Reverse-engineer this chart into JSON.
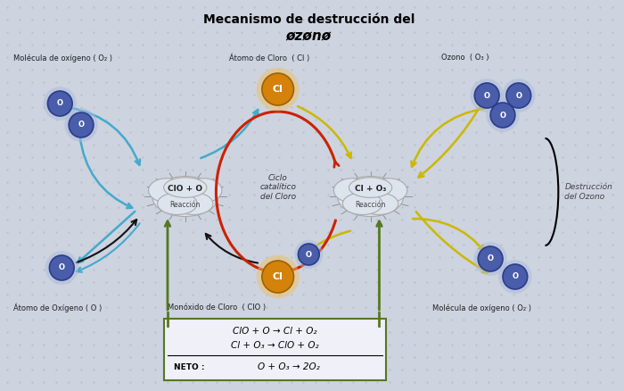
{
  "title_line1": "Mecanismo de destrucción del",
  "title_line2": "øzønø",
  "bg_color": "#cdd3df",
  "dot_color": "#b8bfcc",
  "label_O2_top_left": "Molécula de oxígeno ( O₂ )",
  "label_Cl_top": "Átomo de Cloro  ( Cl )",
  "label_O3_top_right": "Ozono  ( O₃ )",
  "label_O_bottom_left": "Átomo de Oxígeno ( O )",
  "label_ClO_bottom": "Monóxido de Cloro  ( ClO )",
  "label_O2_bottom_right": "Molécula de oxígeno ( O₂ )",
  "label_ciclo": "Ciclo\ncatalítico\ndel Cloro",
  "label_destruccion": "Destrucción\ndel Ozono",
  "eq1": "ClO + O → Cl + O₂",
  "eq2": "Cl + O₃ → ClO + O₂",
  "eq_net": "O + O₃ → 2O₂",
  "eq_net_label": "NETO :",
  "cloud_color": "#e8eaf0",
  "Cl_color": "#d4820a",
  "Cl_edge": "#a06000",
  "O_color": "#4a5daa",
  "O_edge": "#2a3d8a",
  "O_glow": "#aabbdd",
  "arrow_blue": "#44aacc",
  "arrow_yellow": "#ccb800",
  "arrow_black": "#111111",
  "arrow_red": "#cc2200",
  "arrow_green": "#557722"
}
